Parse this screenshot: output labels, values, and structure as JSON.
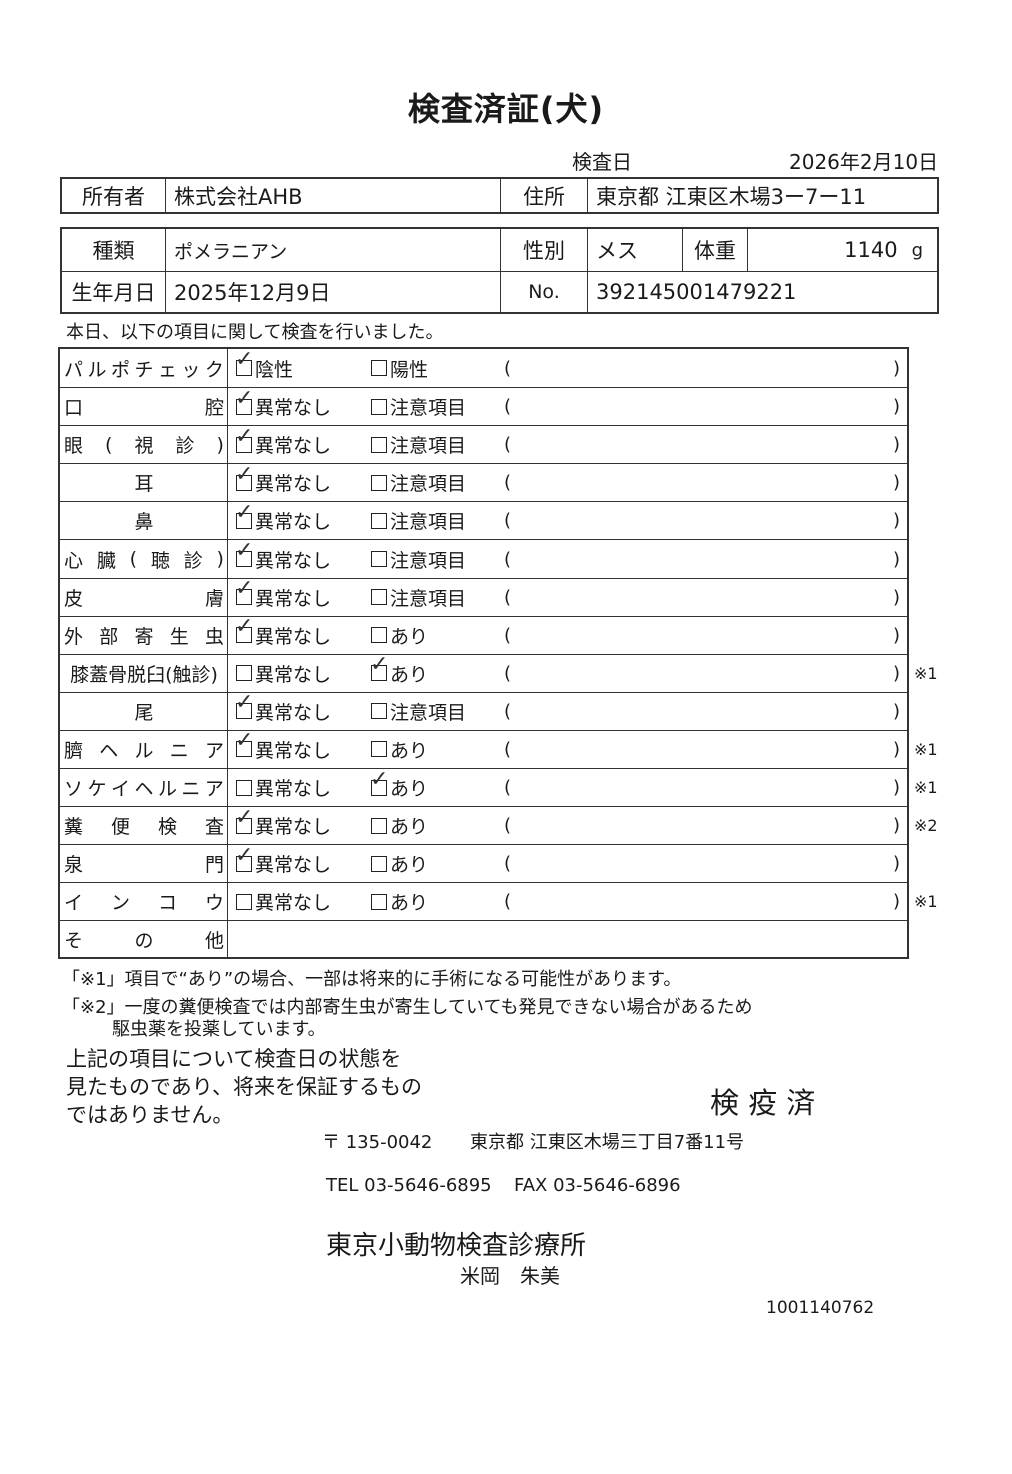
{
  "title": "検査済証(犬)",
  "exam_date": {
    "label": "検査日",
    "value": "2026年2月10日"
  },
  "owner": {
    "label": "所有者",
    "value": "株式会社AHB",
    "address_label": "住所",
    "address": "東京都 江東区木場3ー7ー11"
  },
  "pet": {
    "breed_label": "種類",
    "breed": "ポメラニアン",
    "sex_label": "性別",
    "sex": "メス",
    "weight_label": "体重",
    "weight": "1140",
    "weight_unit": "g",
    "birth_label": "生年月日",
    "birth": "2025年12月9日",
    "no_label": "No.",
    "no": "392145001479221"
  },
  "intro": "本日、以下の項目に関して検査を行いました。",
  "paren_open": "(",
  "paren_close": ")",
  "items": [
    {
      "label": [
        "パ",
        "ル",
        "ポ",
        "チ",
        "ェ",
        "ッ",
        "ク"
      ],
      "opt1": "陰性",
      "opt2": "陽性",
      "checked": 1,
      "note": ""
    },
    {
      "label": [
        "口",
        "腔"
      ],
      "opt1": "異常なし",
      "opt2": "注意項目",
      "checked": 1,
      "note": ""
    },
    {
      "label": [
        "眼",
        "(",
        "視",
        "診",
        ")"
      ],
      "opt1": "異常なし",
      "opt2": "注意項目",
      "checked": 1,
      "note": ""
    },
    {
      "label": [
        "耳"
      ],
      "opt1": "異常なし",
      "opt2": "注意項目",
      "checked": 1,
      "note": ""
    },
    {
      "label": [
        "鼻"
      ],
      "opt1": "異常なし",
      "opt2": "注意項目",
      "checked": 1,
      "note": ""
    },
    {
      "label": [
        "心",
        "臓",
        "(",
        "聴",
        "診",
        ")"
      ],
      "opt1": "異常なし",
      "opt2": "注意項目",
      "checked": 1,
      "note": ""
    },
    {
      "label": [
        "皮",
        "膚"
      ],
      "opt1": "異常なし",
      "opt2": "注意項目",
      "checked": 1,
      "note": ""
    },
    {
      "label": [
        "外",
        "部",
        "寄",
        "生",
        "虫"
      ],
      "opt1": "異常なし",
      "opt2": "あり",
      "checked": 1,
      "note": ""
    },
    {
      "label": [
        "膝蓋骨脱臼(触診)"
      ],
      "opt1": "異常なし",
      "opt2": "あり",
      "checked": 2,
      "note": "※1"
    },
    {
      "label": [
        "尾"
      ],
      "opt1": "異常なし",
      "opt2": "注意項目",
      "checked": 1,
      "note": ""
    },
    {
      "label": [
        "臍",
        "ヘ",
        "ル",
        "ニ",
        "ア"
      ],
      "opt1": "異常なし",
      "opt2": "あり",
      "checked": 1,
      "note": "※1"
    },
    {
      "label": [
        "ソ",
        "ケ",
        "イ",
        "ヘ",
        "ル",
        "ニ",
        "ア"
      ],
      "opt1": "異常なし",
      "opt2": "あり",
      "checked": 2,
      "note": "※1"
    },
    {
      "label": [
        "糞",
        "便",
        "検",
        "査"
      ],
      "opt1": "異常なし",
      "opt2": "あり",
      "checked": 1,
      "note": "※2"
    },
    {
      "label": [
        "泉",
        "門"
      ],
      "opt1": "異常なし",
      "opt2": "あり",
      "checked": 1,
      "note": ""
    },
    {
      "label": [
        "イ",
        "ン",
        "コ",
        "ウ"
      ],
      "opt1": "異常なし",
      "opt2": "あり",
      "checked": 0,
      "note": "※1"
    },
    {
      "label": [
        "そ",
        "の",
        "他"
      ],
      "opt1": "",
      "opt2": "",
      "checked": 0,
      "note": "",
      "other": true
    }
  ],
  "notes": {
    "n1": "「※1」項目で“あり”の場合、一部は将来的に手術になる可能性があります。",
    "n2": "「※2」一度の糞便検査では内部寄生虫が寄生していても発見できない場合があるため",
    "n2b": "駆虫薬を投薬しています。"
  },
  "disclaimer": [
    "上記の項目について検査日の状態を",
    "見たものであり、将来を保証するもの",
    "ではありません。"
  ],
  "stamp": "検 疫 済",
  "clinic": {
    "postal": "〒 135-0042",
    "address": "東京都 江東区木場三丁目7番11号",
    "tel": "TEL 03-5646-6895",
    "fax": "FAX 03-5646-6896",
    "name": "東京小動物検査診療所",
    "vet": "米岡　朱美"
  },
  "doc_id": "1001140762",
  "check_color": "#333333"
}
